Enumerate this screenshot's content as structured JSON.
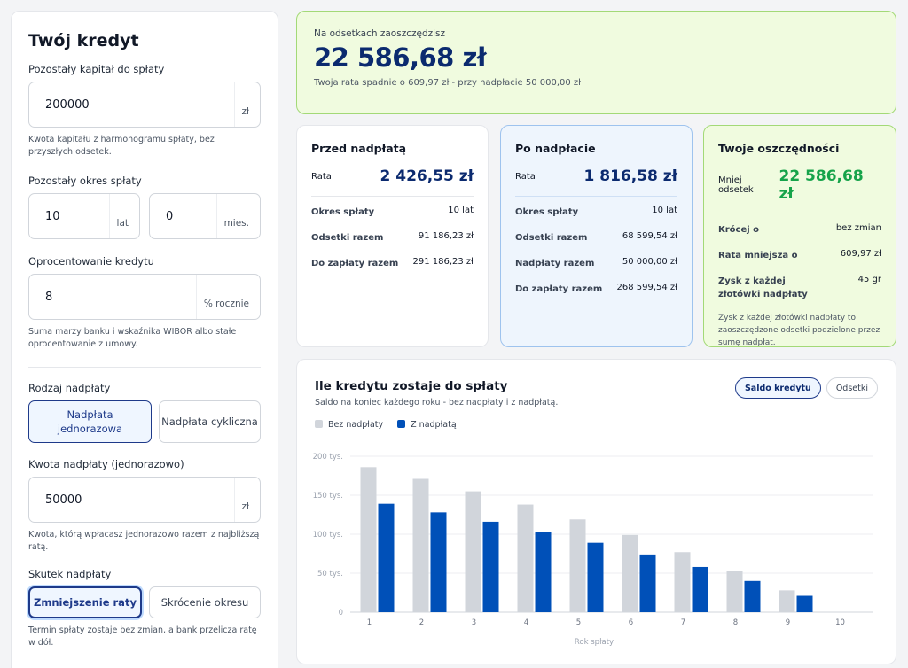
{
  "left": {
    "title": "Twój kredyt",
    "capital": {
      "label": "Pozostały kapitał do spłaty",
      "value": "200000",
      "unit": "zł",
      "help": "Kwota kapitału z harmonogramu spłaty, bez przyszłych odsetek."
    },
    "period": {
      "label": "Pozostały okres spłaty",
      "years_value": "10",
      "years_unit": "lat",
      "months_value": "0",
      "months_unit": "mies."
    },
    "rate": {
      "label": "Oprocentowanie kredytu",
      "value": "8",
      "unit": "% rocznie",
      "help": "Suma marży banku i wskaźnika WIBOR albo stałe oprocentowanie z umowy."
    },
    "overpay_type": {
      "label": "Rodzaj nadpłaty",
      "opt1": "Nadpłata jednorazowa",
      "opt2": "Nadpłata cykliczna"
    },
    "amount": {
      "label": "Kwota nadpłaty (jednorazowo)",
      "value": "50000",
      "unit": "zł",
      "help": "Kwota, którą wpłacasz jednorazowo razem z najbliższą ratą."
    },
    "effect": {
      "label": "Skutek nadpłaty",
      "opt1": "Zmniejszenie raty",
      "opt2": "Skrócenie okresu",
      "help": "Termin spłaty zostaje bez zmian, a bank przelicza ratę w dół."
    }
  },
  "banner": {
    "label": "Na odsetkach zaoszczędzisz",
    "amount": "22 586,68 zł",
    "sub": "Twoja rata spadnie o 609,97 zł - przy nadpłacie 50 000,00 zł"
  },
  "before": {
    "title": "Przed nadpłatą",
    "rate_label": "Rata",
    "rate_value": "2 426,55 zł",
    "rows": [
      {
        "k": "Okres spłaty",
        "v": "10 lat"
      },
      {
        "k": "Odsetki razem",
        "v": "91 186,23 zł"
      },
      {
        "k": "Do zapłaty razem",
        "v": "291 186,23 zł"
      }
    ]
  },
  "after": {
    "title": "Po nadpłacie",
    "rate_label": "Rata",
    "rate_value": "1 816,58 zł",
    "rows": [
      {
        "k": "Okres spłaty",
        "v": "10 lat"
      },
      {
        "k": "Odsetki razem",
        "v": "68 599,54 zł"
      },
      {
        "k": "Nadpłaty razem",
        "v": "50 000,00 zł"
      },
      {
        "k": "Do zapłaty razem",
        "v": "268 599,54 zł"
      }
    ]
  },
  "savings": {
    "title": "Twoje oszczędności",
    "main_label": "Mniej odsetek",
    "main_value": "22 586,68 zł",
    "rows": [
      {
        "k": "Krócej o",
        "v": "bez zmian"
      },
      {
        "k": "Rata mniejsza o",
        "v": "609,97 zł"
      },
      {
        "k": "Zysk z każdej złotówki nadpłaty",
        "v": "45 gr"
      }
    ],
    "note": "Zysk z każdej złotówki nadpłaty to zaoszczędzone odsetki podzielone przez sumę nadpłat."
  },
  "chart": {
    "title": "Ile kredytu zostaje do spłaty",
    "subtitle": "Saldo na koniec każdego roku - bez nadpłaty i z nadpłatą.",
    "toggle_on": "Saldo kredytu",
    "toggle_off": "Odsetki",
    "colors": {
      "before": "#d1d5db",
      "after": "#0050b8"
    }
  },
  "chart_data": {
    "type": "bar",
    "title": "Ile kredytu zostaje do spłaty",
    "xlabel": "Rok spłaty",
    "ylabel": "",
    "categories": [
      "1",
      "2",
      "3",
      "4",
      "5",
      "6",
      "7",
      "8",
      "9",
      "10"
    ],
    "series": [
      {
        "name": "Bez nadpłaty",
        "values": [
          186,
          171,
          155,
          138,
          119,
          99,
          77,
          53,
          28,
          0
        ]
      },
      {
        "name": "Z nadpłatą",
        "values": [
          139,
          128,
          116,
          103,
          89,
          74,
          58,
          40,
          21,
          0
        ]
      }
    ],
    "yticks": [
      "0",
      "50 tys.",
      "100 tys.",
      "150 tys.",
      "200 tys."
    ],
    "ylim": [
      0,
      200
    ],
    "grid": true,
    "legend": "top-left"
  }
}
